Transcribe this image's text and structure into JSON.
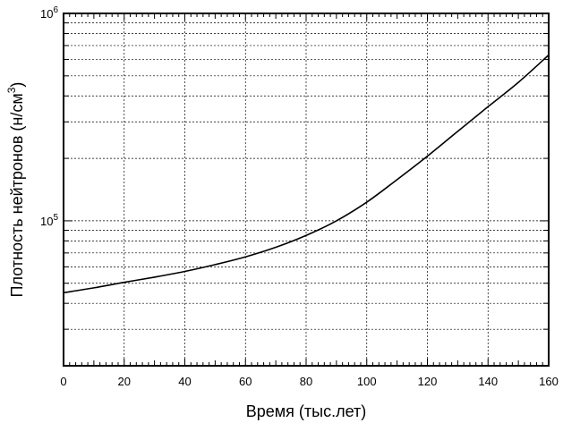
{
  "chart_data": {
    "type": "line",
    "title": "",
    "xlabel": "Время (тыс.лет)",
    "ylabel_main": "Плотность нейтронов (н/см",
    "ylabel_sup": "3",
    "ylabel_close": ")",
    "xlim": [
      0,
      160
    ],
    "ylim": [
      20000,
      1000000
    ],
    "yscale": "log",
    "grid": true,
    "x_ticks": [
      0,
      20,
      40,
      60,
      80,
      100,
      120,
      140,
      160
    ],
    "x_tick_labels": [
      "0",
      "20",
      "40",
      "60",
      "80",
      "100",
      "120",
      "140",
      "160"
    ],
    "y_major_ticks": [
      {
        "value": 100000,
        "base": "10",
        "exp": "5"
      },
      {
        "value": 1000000,
        "base": "10",
        "exp": "6"
      }
    ],
    "series": [
      {
        "x": [
          0,
          10,
          20,
          30,
          40,
          50,
          60,
          70,
          80,
          90,
          100,
          110,
          120,
          130,
          140,
          150,
          160
        ],
        "values": [
          45000,
          47500,
          50500,
          53500,
          57000,
          61500,
          67000,
          74500,
          85000,
          100000,
          123000,
          158000,
          205000,
          270000,
          355000,
          465000,
          630000
        ]
      }
    ]
  }
}
